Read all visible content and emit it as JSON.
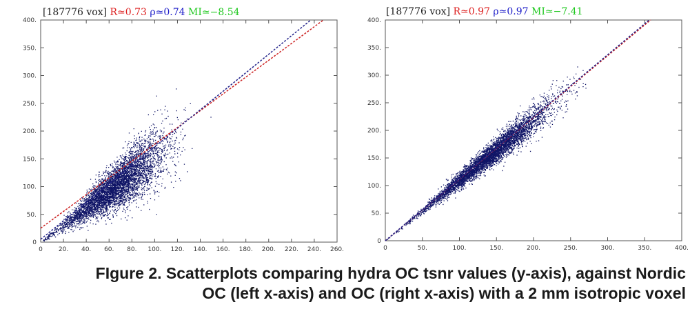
{
  "chart_data": [
    {
      "type": "scatter",
      "header": {
        "vox": "[187776 vox]",
        "r": "R≃0.73",
        "rho": "ρ≃0.74",
        "mi": "MI≃−8.54"
      },
      "xlim": [
        0,
        260
      ],
      "ylim": [
        0,
        400
      ],
      "x_ticks": [
        0,
        20,
        40,
        60,
        80,
        100,
        120,
        140,
        160,
        180,
        200,
        220,
        240,
        260
      ],
      "y_ticks": [
        0,
        50,
        100,
        150,
        200,
        250,
        300,
        350,
        400
      ],
      "x_tick_labels": [
        "0",
        "20.",
        "40.",
        "60.",
        "80.",
        "100.",
        "120.",
        "140.",
        "160.",
        "180.",
        "200.",
        "220.",
        "240.",
        "260."
      ],
      "y_tick_labels": [
        "0",
        "50.",
        "100.",
        "150.",
        "200.",
        "250.",
        "300.",
        "350.",
        "400."
      ],
      "point_count": 187776,
      "cloud": {
        "x_mean": 65,
        "x_sd": 22,
        "y_slope": 1.55,
        "y_scatter_frac": 0.33
      },
      "fit_lines": [
        {
          "color": "#cc2222",
          "points": [
            [
              0,
              25
            ],
            [
              248,
              400
            ]
          ]
        },
        {
          "color": "#22228a",
          "points": [
            [
              0,
              5
            ],
            [
              237,
              400
            ]
          ]
        }
      ]
    },
    {
      "type": "scatter",
      "header": {
        "vox": "[187776 vox]",
        "r": "R≃0.97",
        "rho": "ρ≃0.97",
        "mi": "MI≃−7.41"
      },
      "xlim": [
        0,
        400
      ],
      "ylim": [
        0,
        400
      ],
      "x_ticks": [
        0,
        50,
        100,
        150,
        200,
        250,
        300,
        350,
        400
      ],
      "y_ticks": [
        0,
        50,
        100,
        150,
        200,
        250,
        300,
        350,
        400
      ],
      "x_tick_labels": [
        "0",
        "50.",
        "100.",
        "150.",
        "200.",
        "250.",
        "300.",
        "350.",
        "400."
      ],
      "y_tick_labels": [
        "0",
        "50.",
        "100.",
        "150.",
        "200.",
        "250.",
        "300.",
        "350.",
        "400."
      ],
      "point_count": 187776,
      "cloud": {
        "x_mean": 140,
        "x_sd": 42,
        "y_slope": 1.1,
        "y_scatter_frac": 0.11
      },
      "fit_lines": [
        {
          "color": "#cc2222",
          "points": [
            [
              0,
              0
            ],
            [
              358,
              400
            ]
          ]
        },
        {
          "color": "#22228a",
          "points": [
            [
              0,
              0
            ],
            [
              356,
              400
            ]
          ]
        }
      ]
    }
  ],
  "colors": {
    "points": "#0f1466",
    "r_text": "#dd2020",
    "rho_text": "#1c1cc8",
    "mi_text": "#1fc81f",
    "header_text": "#222222",
    "axis": "#555555",
    "tick_text": "#333333"
  },
  "caption": {
    "line1": "FIgure 2. Scatterplots comparing hydra OC tsnr values (y-axis), against Nordic",
    "line2": "OC (left x-axis) and OC (right x-axis) with a 2 mm isotropic voxel"
  }
}
